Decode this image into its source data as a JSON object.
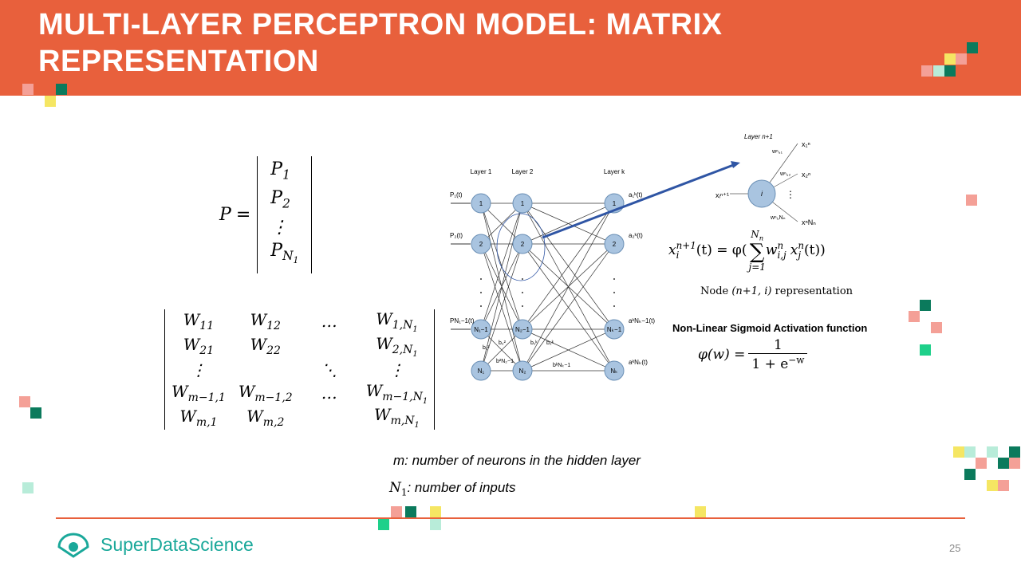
{
  "header": {
    "title": "MULTI-LAYER PERCEPTRON MODEL: MATRIX REPRESENTATION"
  },
  "p_vector": {
    "symbol": "P",
    "equals": "=",
    "entries": [
      {
        "base": "P",
        "sub": "1"
      },
      {
        "base": "P",
        "sub": "2"
      },
      "⋮",
      {
        "base": "P",
        "sub": "N",
        "subsub": "1"
      }
    ]
  },
  "w_matrix": {
    "rows": [
      [
        {
          "base": "W",
          "sub": "11"
        },
        {
          "base": "W",
          "sub": "12"
        },
        "…",
        {
          "base": "W",
          "sub": "1,N",
          "subsub": "1"
        }
      ],
      [
        {
          "base": "W",
          "sub": "21"
        },
        {
          "base": "W",
          "sub": "22"
        },
        null,
        {
          "base": "W",
          "sub": "2,N",
          "subsub": "1"
        }
      ],
      [
        "⋮",
        null,
        "⋱",
        "⋮"
      ],
      [
        {
          "base": "W",
          "sub": "m−1,1"
        },
        {
          "base": "W",
          "sub": "m−1,2"
        },
        "…",
        {
          "base": "W",
          "sub": "m−1,N",
          "subsub": "1"
        }
      ],
      [
        {
          "base": "W",
          "sub": "m,1"
        },
        {
          "base": "W",
          "sub": "m,2"
        },
        null,
        {
          "base": "W",
          "sub": "m,N",
          "subsub": "1"
        }
      ]
    ]
  },
  "network": {
    "layers": [
      {
        "name": "Layer 1",
        "nodes": [
          "1",
          "2",
          "N₁−1",
          "N₁"
        ]
      },
      {
        "name": "Layer 2",
        "nodes": [
          "1",
          "2",
          "N₂−1",
          "N₂"
        ]
      },
      {
        "name": "Layer k",
        "nodes": [
          "1",
          "2",
          "Nₖ−1",
          "Nₖ"
        ]
      }
    ],
    "inputs": [
      "P₁(t)",
      "P₂(t)",
      "PN₁−1(t)"
    ],
    "outputs": [
      "a₁ᵏ(t)",
      "a₂ᵏ(t)",
      "aᵏNₖ−1(t)",
      "aᵏNₖ(t)"
    ],
    "biases": [
      "b₁²",
      "b₂²",
      "b²N₂−1",
      "b₁ᵏ",
      "b₂ᵏ",
      "bᵏNₖ−1"
    ]
  },
  "node_diagram": {
    "layer": "Layer n+1",
    "node": "i",
    "output": "xᵢⁿ⁺¹",
    "weights": [
      "wⁿᵢ,₁",
      "wⁿᵢ,₂",
      "wⁿᵢ,Nₙ"
    ],
    "inputs": [
      "x₁ⁿ",
      "x₂ⁿ",
      "xⁿNₙ"
    ]
  },
  "node_formula": {
    "lhs": {
      "base": "x",
      "sub": "i",
      "sup": "n+1"
    },
    "middle": "(t) = φ(",
    "sum": "∑",
    "sum_upper": {
      "base": "N",
      "sub": "n"
    },
    "sum_lower": "j=1",
    "term1": {
      "base": "w",
      "sub": "i,j",
      "sup": "n"
    },
    "term2": {
      "base": "x",
      "sub": "j",
      "sup": "n"
    },
    "tail": "(t))",
    "caption": [
      "Node ",
      "(n+1, i)",
      " representation"
    ]
  },
  "sigmoid": {
    "title": "Non-Linear Sigmoid Activation function",
    "lhs": "φ(w) =",
    "numerator": "1",
    "denominator": {
      "base": "1 + e",
      "sup": "−w"
    }
  },
  "notes": {
    "m": "m: number of neurons in the hidden layer",
    "n1": {
      "base": "N",
      "sub": "1",
      "text": ": number of inputs"
    }
  },
  "footer": {
    "logo": "SuperDataScience",
    "page": "25"
  }
}
